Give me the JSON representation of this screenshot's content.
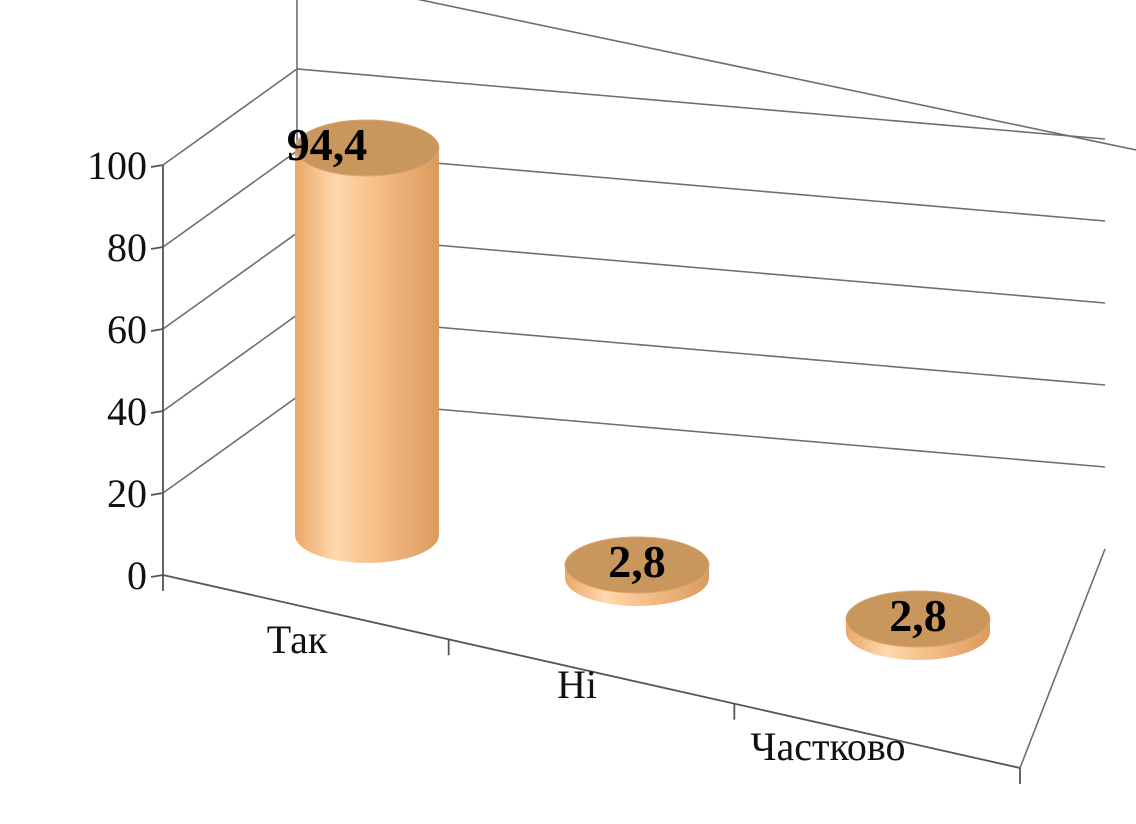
{
  "chart_data": {
    "type": "bar",
    "style": "3d-cylinder",
    "categories": [
      "Так",
      "Ні",
      "Частково"
    ],
    "values": [
      94.4,
      2.8,
      2.8
    ],
    "data_labels": [
      "94,4",
      "2,8",
      "2,8"
    ],
    "y_ticks": [
      "0",
      "20",
      "40",
      "60",
      "80",
      "100"
    ],
    "ylim": [
      0,
      100
    ],
    "grid": true,
    "legend": "none",
    "bar_color": "#f2b97e"
  }
}
